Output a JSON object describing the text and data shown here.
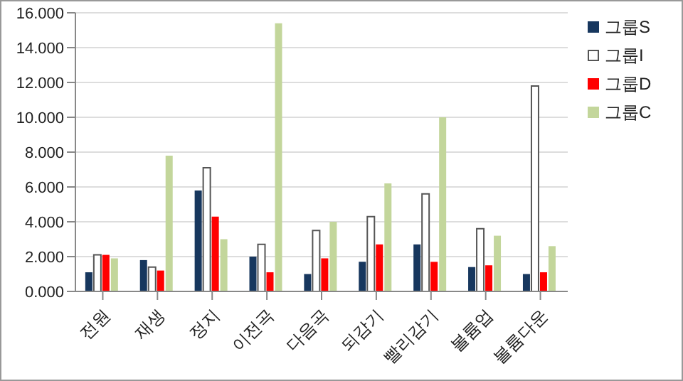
{
  "chart_data": {
    "type": "bar",
    "categories": [
      "전원",
      "재생",
      "정지",
      "이전곡",
      "다음곡",
      "되감기",
      "빨리감기",
      "볼륨업",
      "볼륨다운"
    ],
    "series": [
      {
        "name": "그룹S",
        "color": "#17375e",
        "values": [
          1.1,
          1.8,
          5.8,
          2.0,
          1.0,
          1.7,
          2.7,
          1.4,
          1.0
        ]
      },
      {
        "name": "그룹I",
        "color": "#ffffff",
        "values": [
          2.1,
          1.4,
          7.1,
          2.7,
          3.5,
          4.3,
          5.6,
          3.6,
          11.8
        ]
      },
      {
        "name": "그룹D",
        "color": "#ff0000",
        "values": [
          2.1,
          1.2,
          4.3,
          1.1,
          1.9,
          2.7,
          1.7,
          1.5,
          1.1
        ]
      },
      {
        "name": "그룹C",
        "color": "#c3d69b",
        "values": [
          1.9,
          7.8,
          3.0,
          15.4,
          4.0,
          6.2,
          10.0,
          3.2,
          2.6
        ]
      }
    ],
    "ylim": [
      0,
      16
    ],
    "yticks": [
      {
        "value": 0,
        "label": "0.000"
      },
      {
        "value": 2,
        "label": "2.000"
      },
      {
        "value": 4,
        "label": "4.000"
      },
      {
        "value": 6,
        "label": "6.000"
      },
      {
        "value": 8,
        "label": "8.000"
      },
      {
        "value": 10,
        "label": "10.000"
      },
      {
        "value": 12,
        "label": "12.000"
      },
      {
        "value": 14,
        "label": "14.000"
      },
      {
        "value": 16,
        "label": "16.000"
      }
    ],
    "grid": "y",
    "legend": "top right"
  }
}
